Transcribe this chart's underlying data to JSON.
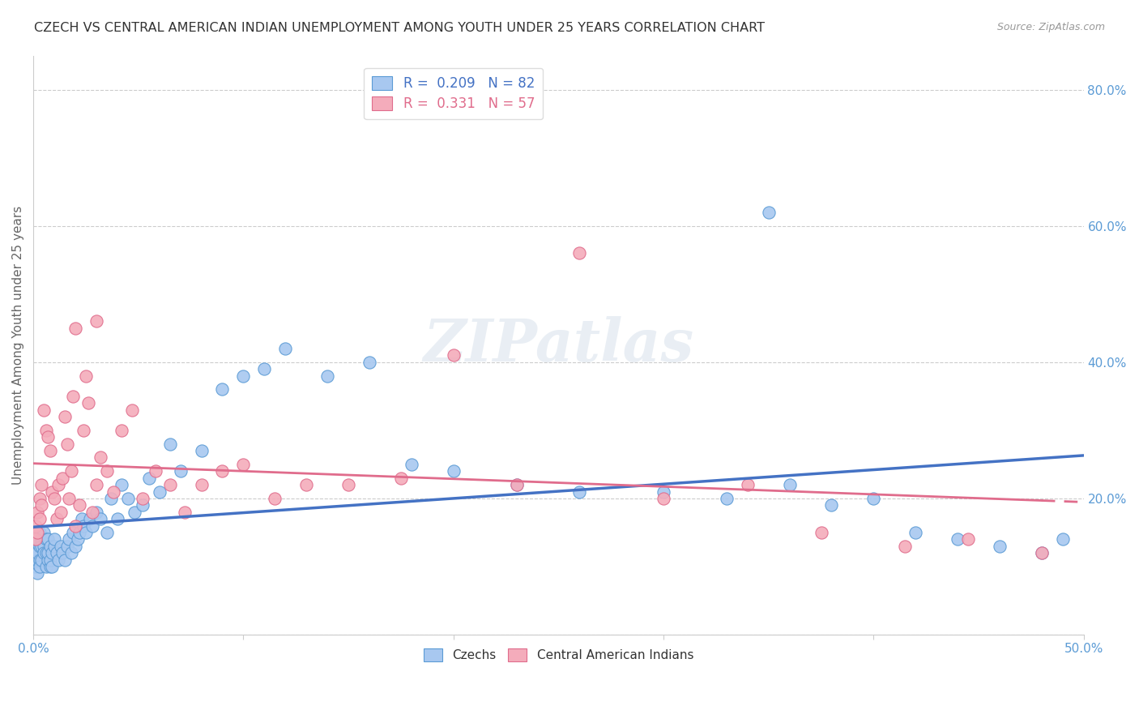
{
  "title": "CZECH VS CENTRAL AMERICAN INDIAN UNEMPLOYMENT AMONG YOUTH UNDER 25 YEARS CORRELATION CHART",
  "source": "Source: ZipAtlas.com",
  "ylabel": "Unemployment Among Youth under 25 years",
  "xlim": [
    0.0,
    0.5
  ],
  "ylim": [
    0.0,
    0.85
  ],
  "xticks": [
    0.0,
    0.1,
    0.2,
    0.3,
    0.4,
    0.5
  ],
  "yticks": [
    0.0,
    0.2,
    0.4,
    0.6,
    0.8
  ],
  "right_ytick_labels": [
    "",
    "20.0%",
    "40.0%",
    "60.0%",
    "80.0%"
  ],
  "xtick_labels_show": [
    "0.0%",
    "",
    "",
    "",
    "",
    "50.0%"
  ],
  "czech_color": "#A8C8F0",
  "czech_edge_color": "#5B9BD5",
  "cai_color": "#F4ACBB",
  "cai_edge_color": "#E06C8C",
  "czech_line_color": "#4472C4",
  "cai_line_color": "#E06C8C",
  "legend_czech_label": "R =  0.209   N = 82",
  "legend_cai_label": "R =  0.331   N = 57",
  "legend_czechs": "Czechs",
  "legend_cai": "Central American Indians",
  "watermark": "ZIPatlas",
  "background_color": "#FFFFFF",
  "grid_color": "#CCCCCC",
  "axis_color": "#CCCCCC",
  "tick_color": "#5B9BD5",
  "title_color": "#333333",
  "czech_scatter_x": [
    0.001,
    0.001,
    0.001,
    0.002,
    0.002,
    0.002,
    0.002,
    0.003,
    0.003,
    0.003,
    0.003,
    0.004,
    0.004,
    0.004,
    0.005,
    0.005,
    0.005,
    0.006,
    0.006,
    0.006,
    0.007,
    0.007,
    0.007,
    0.008,
    0.008,
    0.008,
    0.009,
    0.009,
    0.01,
    0.01,
    0.011,
    0.012,
    0.013,
    0.014,
    0.015,
    0.016,
    0.017,
    0.018,
    0.019,
    0.02,
    0.021,
    0.022,
    0.023,
    0.024,
    0.025,
    0.027,
    0.028,
    0.03,
    0.032,
    0.035,
    0.037,
    0.04,
    0.042,
    0.045,
    0.048,
    0.052,
    0.055,
    0.06,
    0.065,
    0.07,
    0.08,
    0.09,
    0.1,
    0.11,
    0.12,
    0.14,
    0.16,
    0.18,
    0.2,
    0.23,
    0.26,
    0.3,
    0.33,
    0.36,
    0.38,
    0.4,
    0.42,
    0.44,
    0.46,
    0.48,
    0.49,
    0.35
  ],
  "czech_scatter_y": [
    0.13,
    0.1,
    0.12,
    0.11,
    0.14,
    0.09,
    0.12,
    0.15,
    0.13,
    0.11,
    0.1,
    0.14,
    0.11,
    0.13,
    0.13,
    0.15,
    0.12,
    0.14,
    0.1,
    0.12,
    0.11,
    0.14,
    0.12,
    0.1,
    0.13,
    0.11,
    0.12,
    0.1,
    0.13,
    0.14,
    0.12,
    0.11,
    0.13,
    0.12,
    0.11,
    0.13,
    0.14,
    0.12,
    0.15,
    0.13,
    0.14,
    0.15,
    0.17,
    0.16,
    0.15,
    0.17,
    0.16,
    0.18,
    0.17,
    0.15,
    0.2,
    0.17,
    0.22,
    0.2,
    0.18,
    0.19,
    0.23,
    0.21,
    0.28,
    0.24,
    0.27,
    0.36,
    0.38,
    0.39,
    0.42,
    0.38,
    0.4,
    0.25,
    0.24,
    0.22,
    0.21,
    0.21,
    0.2,
    0.22,
    0.19,
    0.2,
    0.15,
    0.14,
    0.13,
    0.12,
    0.14,
    0.62
  ],
  "cai_scatter_x": [
    0.001,
    0.001,
    0.002,
    0.002,
    0.003,
    0.003,
    0.004,
    0.004,
    0.005,
    0.006,
    0.007,
    0.008,
    0.009,
    0.01,
    0.011,
    0.012,
    0.013,
    0.014,
    0.015,
    0.016,
    0.017,
    0.018,
    0.019,
    0.02,
    0.022,
    0.024,
    0.026,
    0.028,
    0.03,
    0.032,
    0.035,
    0.038,
    0.042,
    0.047,
    0.052,
    0.058,
    0.065,
    0.072,
    0.08,
    0.09,
    0.1,
    0.115,
    0.13,
    0.15,
    0.175,
    0.2,
    0.23,
    0.26,
    0.3,
    0.34,
    0.375,
    0.415,
    0.445,
    0.48,
    0.03,
    0.025,
    0.02
  ],
  "cai_scatter_y": [
    0.16,
    0.14,
    0.18,
    0.15,
    0.2,
    0.17,
    0.22,
    0.19,
    0.33,
    0.3,
    0.29,
    0.27,
    0.21,
    0.2,
    0.17,
    0.22,
    0.18,
    0.23,
    0.32,
    0.28,
    0.2,
    0.24,
    0.35,
    0.16,
    0.19,
    0.3,
    0.34,
    0.18,
    0.22,
    0.26,
    0.24,
    0.21,
    0.3,
    0.33,
    0.2,
    0.24,
    0.22,
    0.18,
    0.22,
    0.24,
    0.25,
    0.2,
    0.22,
    0.22,
    0.23,
    0.41,
    0.22,
    0.56,
    0.2,
    0.22,
    0.15,
    0.13,
    0.14,
    0.12,
    0.46,
    0.38,
    0.45
  ]
}
